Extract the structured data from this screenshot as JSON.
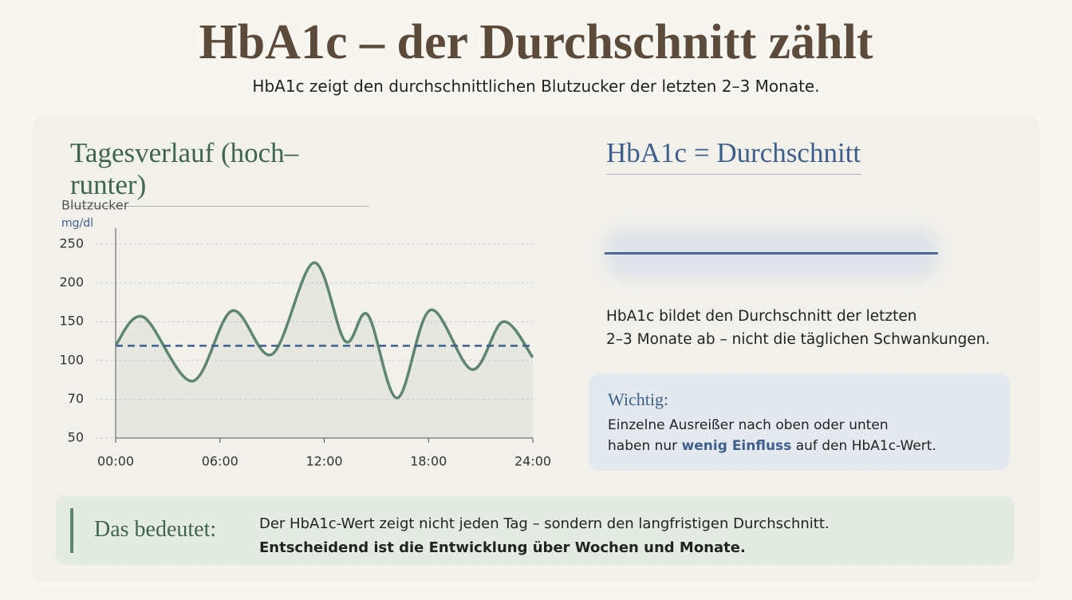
{
  "header": {
    "title": "HbA1c – der Durchschnitt zählt",
    "subtitle": "HbA1c zeigt den durchschnittlichen Blutzucker der letzten 2–3 Monate."
  },
  "chart_data": {
    "type": "line",
    "title": "Tagesverlauf (hoch–runter)",
    "y_label": "Blutzucker",
    "y_unit": "mg/dl",
    "x": [
      0,
      1.6,
      4.4,
      6.7,
      9.0,
      11.4,
      13.2,
      14.5,
      16.2,
      18.1,
      20.5,
      22.3,
      24
    ],
    "series": [
      {
        "color": "#5e8571",
        "values": [
          120,
          156,
          84,
          164,
          108,
          226,
          125,
          159,
          71,
          165,
          93,
          150,
          104
        ]
      }
    ],
    "average": 119,
    "average_color": "#3e5f8a",
    "xlim": [
      0,
      24
    ],
    "xticks": [
      {
        "value": 0,
        "label": "00:00"
      },
      {
        "value": 6,
        "label": "06:00"
      },
      {
        "value": 12,
        "label": "12:00"
      },
      {
        "value": 18,
        "label": "18:00"
      },
      {
        "value": 24,
        "label": "24:00"
      }
    ],
    "ylim": [
      50,
      250
    ],
    "yticks": [
      50,
      70,
      100,
      150,
      200,
      250
    ],
    "grid": true
  },
  "right": {
    "title": "HbA1c = Durchschnitt",
    "text_lines": [
      "HbA1c bildet den Durchschnitt der letzten",
      "2–3 Monate ab – nicht die täglichen Schwankungen."
    ]
  },
  "info": {
    "title": "Wichtig:",
    "line1": "Einzelne Ausreißer nach oben oder unten",
    "line2_before": "haben nur ",
    "line2_bold": "wenig Einfluss",
    "line2_after": " auf den HbA1c-Wert."
  },
  "footer": {
    "label": "Das bedeutet:",
    "line1": "Der HbA1c-Wert zeigt nicht jeden Tag – sondern den langfristigen Durchschnitt.",
    "line2": "Entscheidend ist die Entwicklung über Wochen und Monate."
  }
}
